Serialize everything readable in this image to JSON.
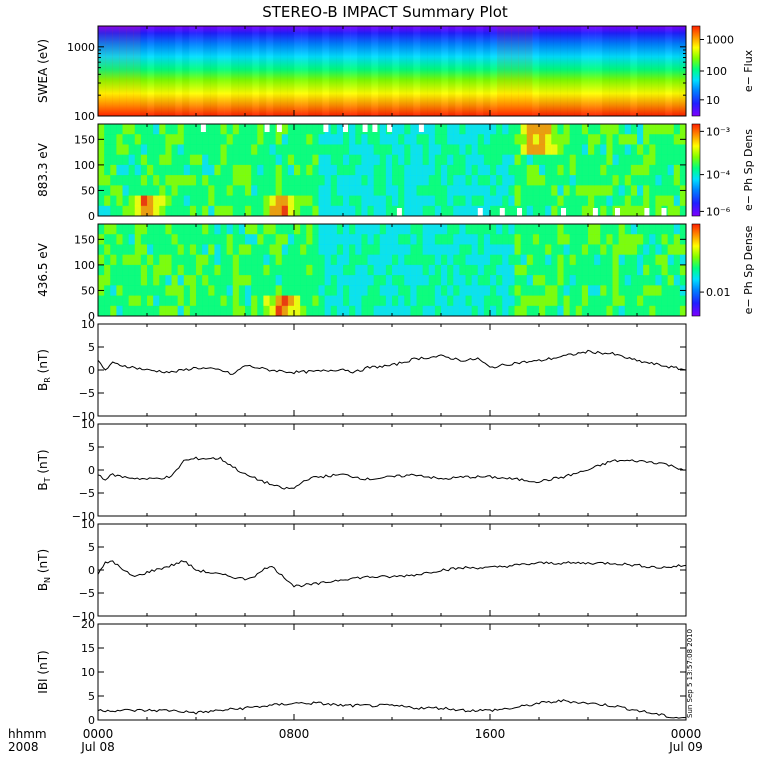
{
  "title": "STEREO-B IMPACT Summary Plot",
  "footer": {
    "left_top": "hhmm",
    "left_bottom": "2008"
  },
  "timestamp": "Sun Sep  5 13:57:08 2010",
  "colors": {
    "colormap": [
      "#7f00ff",
      "#2020ff",
      "#0080ff",
      "#00e0ff",
      "#00ff80",
      "#80ff00",
      "#ffff00",
      "#ff9000",
      "#ff2000"
    ],
    "line": "#000000",
    "gap": "#ffffff"
  },
  "chart_data": [
    {
      "type": "heatmap",
      "ylabel": "SWEA (eV)",
      "ylog": true,
      "ylim": [
        100,
        2000
      ],
      "yticks": [
        "100",
        "1000"
      ],
      "colorbar": {
        "label": "e− Flux",
        "ticks": [
          "10",
          "100",
          "1000"
        ]
      },
      "description_levels": {
        "low_energy": "red",
        "mid_energy": "green",
        "high_energy": "blue"
      }
    },
    {
      "type": "heatmap",
      "ylabel": "883.3 eV",
      "ylim": [
        0,
        180
      ],
      "yticks": [
        "0",
        "50",
        "100",
        "150"
      ],
      "colorbar": {
        "label": "e− Ph Sp Dens",
        "ticks": [
          "10⁻⁶",
          "10⁻⁴",
          "10⁻³"
        ]
      },
      "hot_spots_hours": [
        2,
        7.5,
        18
      ]
    },
    {
      "type": "heatmap",
      "ylabel": "436.5 eV",
      "ylim": [
        0,
        180
      ],
      "yticks": [
        "0",
        "50",
        "100",
        "150"
      ],
      "colorbar": {
        "label": "e− Ph Sp Dense",
        "ticks": [
          "0.01"
        ]
      },
      "hot_spots_hours": [
        7.5
      ]
    },
    {
      "type": "line",
      "ylabel": "B_R (nT)",
      "ylim": [
        -10,
        10
      ],
      "yticks": [
        "−10",
        "−5",
        "0",
        "5",
        "10"
      ],
      "x_hours": [
        0,
        0.3,
        0.6,
        1,
        2,
        3,
        4,
        5,
        5.5,
        6,
        7,
        8,
        9,
        10,
        10.5,
        11,
        12,
        13,
        14,
        15,
        15.5,
        16,
        17,
        18,
        19,
        20,
        21,
        22,
        23,
        24
      ],
      "y": [
        2,
        0,
        1.5,
        1,
        0,
        -0.5,
        0.5,
        0,
        -1,
        1,
        0,
        -0.5,
        -0.3,
        0.2,
        -0.5,
        0.5,
        1,
        2.5,
        3,
        2,
        2.5,
        0.5,
        1.5,
        2,
        3,
        4,
        3.5,
        2,
        1,
        0
      ]
    },
    {
      "type": "line",
      "ylabel": "B_T (nT)",
      "ylim": [
        -10,
        10
      ],
      "yticks": [
        "−10",
        "−5",
        "0",
        "5",
        "10"
      ],
      "x_hours": [
        0,
        0.3,
        0.6,
        1,
        2,
        3,
        3.5,
        4,
        5,
        6,
        7,
        7.5,
        8,
        8.5,
        9,
        10,
        11,
        12,
        13,
        14,
        15,
        16,
        17,
        18,
        19,
        20,
        21,
        22,
        23,
        24
      ],
      "y": [
        -1,
        -2,
        -1,
        -1.5,
        -2,
        -1.5,
        2,
        2.5,
        2.5,
        -1,
        -3,
        -4,
        -4,
        -2,
        -1.5,
        -1,
        -2,
        -1.5,
        -1,
        -2,
        -1.5,
        -1.5,
        -2,
        -2.5,
        -1.5,
        0,
        2,
        2,
        1.5,
        0
      ]
    },
    {
      "type": "line",
      "ylabel": "B_N (nT)",
      "ylim": [
        -10,
        10
      ],
      "yticks": [
        "−10",
        "−5",
        "0",
        "5",
        "10"
      ],
      "x_hours": [
        0,
        0.3,
        0.6,
        1,
        1.5,
        2,
        3,
        3.5,
        4,
        5,
        6,
        6.5,
        7,
        7.5,
        8,
        9,
        10,
        11,
        12,
        13,
        14,
        15,
        16,
        17,
        18,
        19,
        20,
        21,
        22,
        23,
        24
      ],
      "y": [
        -1,
        1.5,
        2,
        0,
        -1.5,
        -0.5,
        1,
        2,
        0,
        -1,
        -2,
        -1,
        1,
        -1,
        -3.5,
        -3,
        -2,
        -1.5,
        -1.5,
        -1,
        0,
        0.5,
        0.5,
        1,
        1.5,
        1.5,
        1.5,
        1.5,
        1,
        0.5,
        1
      ]
    },
    {
      "type": "line",
      "ylabel": "|B| (nT)",
      "ylim": [
        0,
        20
      ],
      "yticks": [
        "0",
        "5",
        "10",
        "15",
        "20"
      ],
      "x_hours": [
        0,
        1,
        2,
        3,
        4,
        5,
        6,
        7,
        8,
        9,
        10,
        11,
        12,
        13,
        14,
        15,
        16,
        17,
        18,
        19,
        20,
        21,
        22,
        23,
        23.5,
        24
      ],
      "y": [
        2,
        2,
        2,
        2,
        1.5,
        2,
        2.5,
        3,
        3.5,
        3.5,
        3,
        3,
        3,
        2.5,
        2.5,
        2,
        2,
        2.5,
        3.5,
        4,
        3.5,
        3,
        2,
        1,
        0.5,
        0.5
      ]
    }
  ],
  "x_axis": {
    "range_hours": [
      0,
      24
    ],
    "ticks": [
      {
        "hour": 0,
        "top": "0000",
        "bottom": "Jul 08"
      },
      {
        "hour": 8,
        "top": "0800",
        "bottom": ""
      },
      {
        "hour": 16,
        "top": "1600",
        "bottom": ""
      },
      {
        "hour": 24,
        "top": "0000",
        "bottom": "Jul 09"
      }
    ]
  },
  "ylabels_render": {
    "br": {
      "main": "B",
      "sub": "R",
      "unit": " (nT)"
    },
    "bt": {
      "main": "B",
      "sub": "T",
      "unit": " (nT)"
    },
    "bn": {
      "main": "B",
      "sub": "N",
      "unit": " (nT)"
    },
    "bmag": {
      "main": "IBI (nT)",
      "sub": "",
      "unit": ""
    }
  }
}
